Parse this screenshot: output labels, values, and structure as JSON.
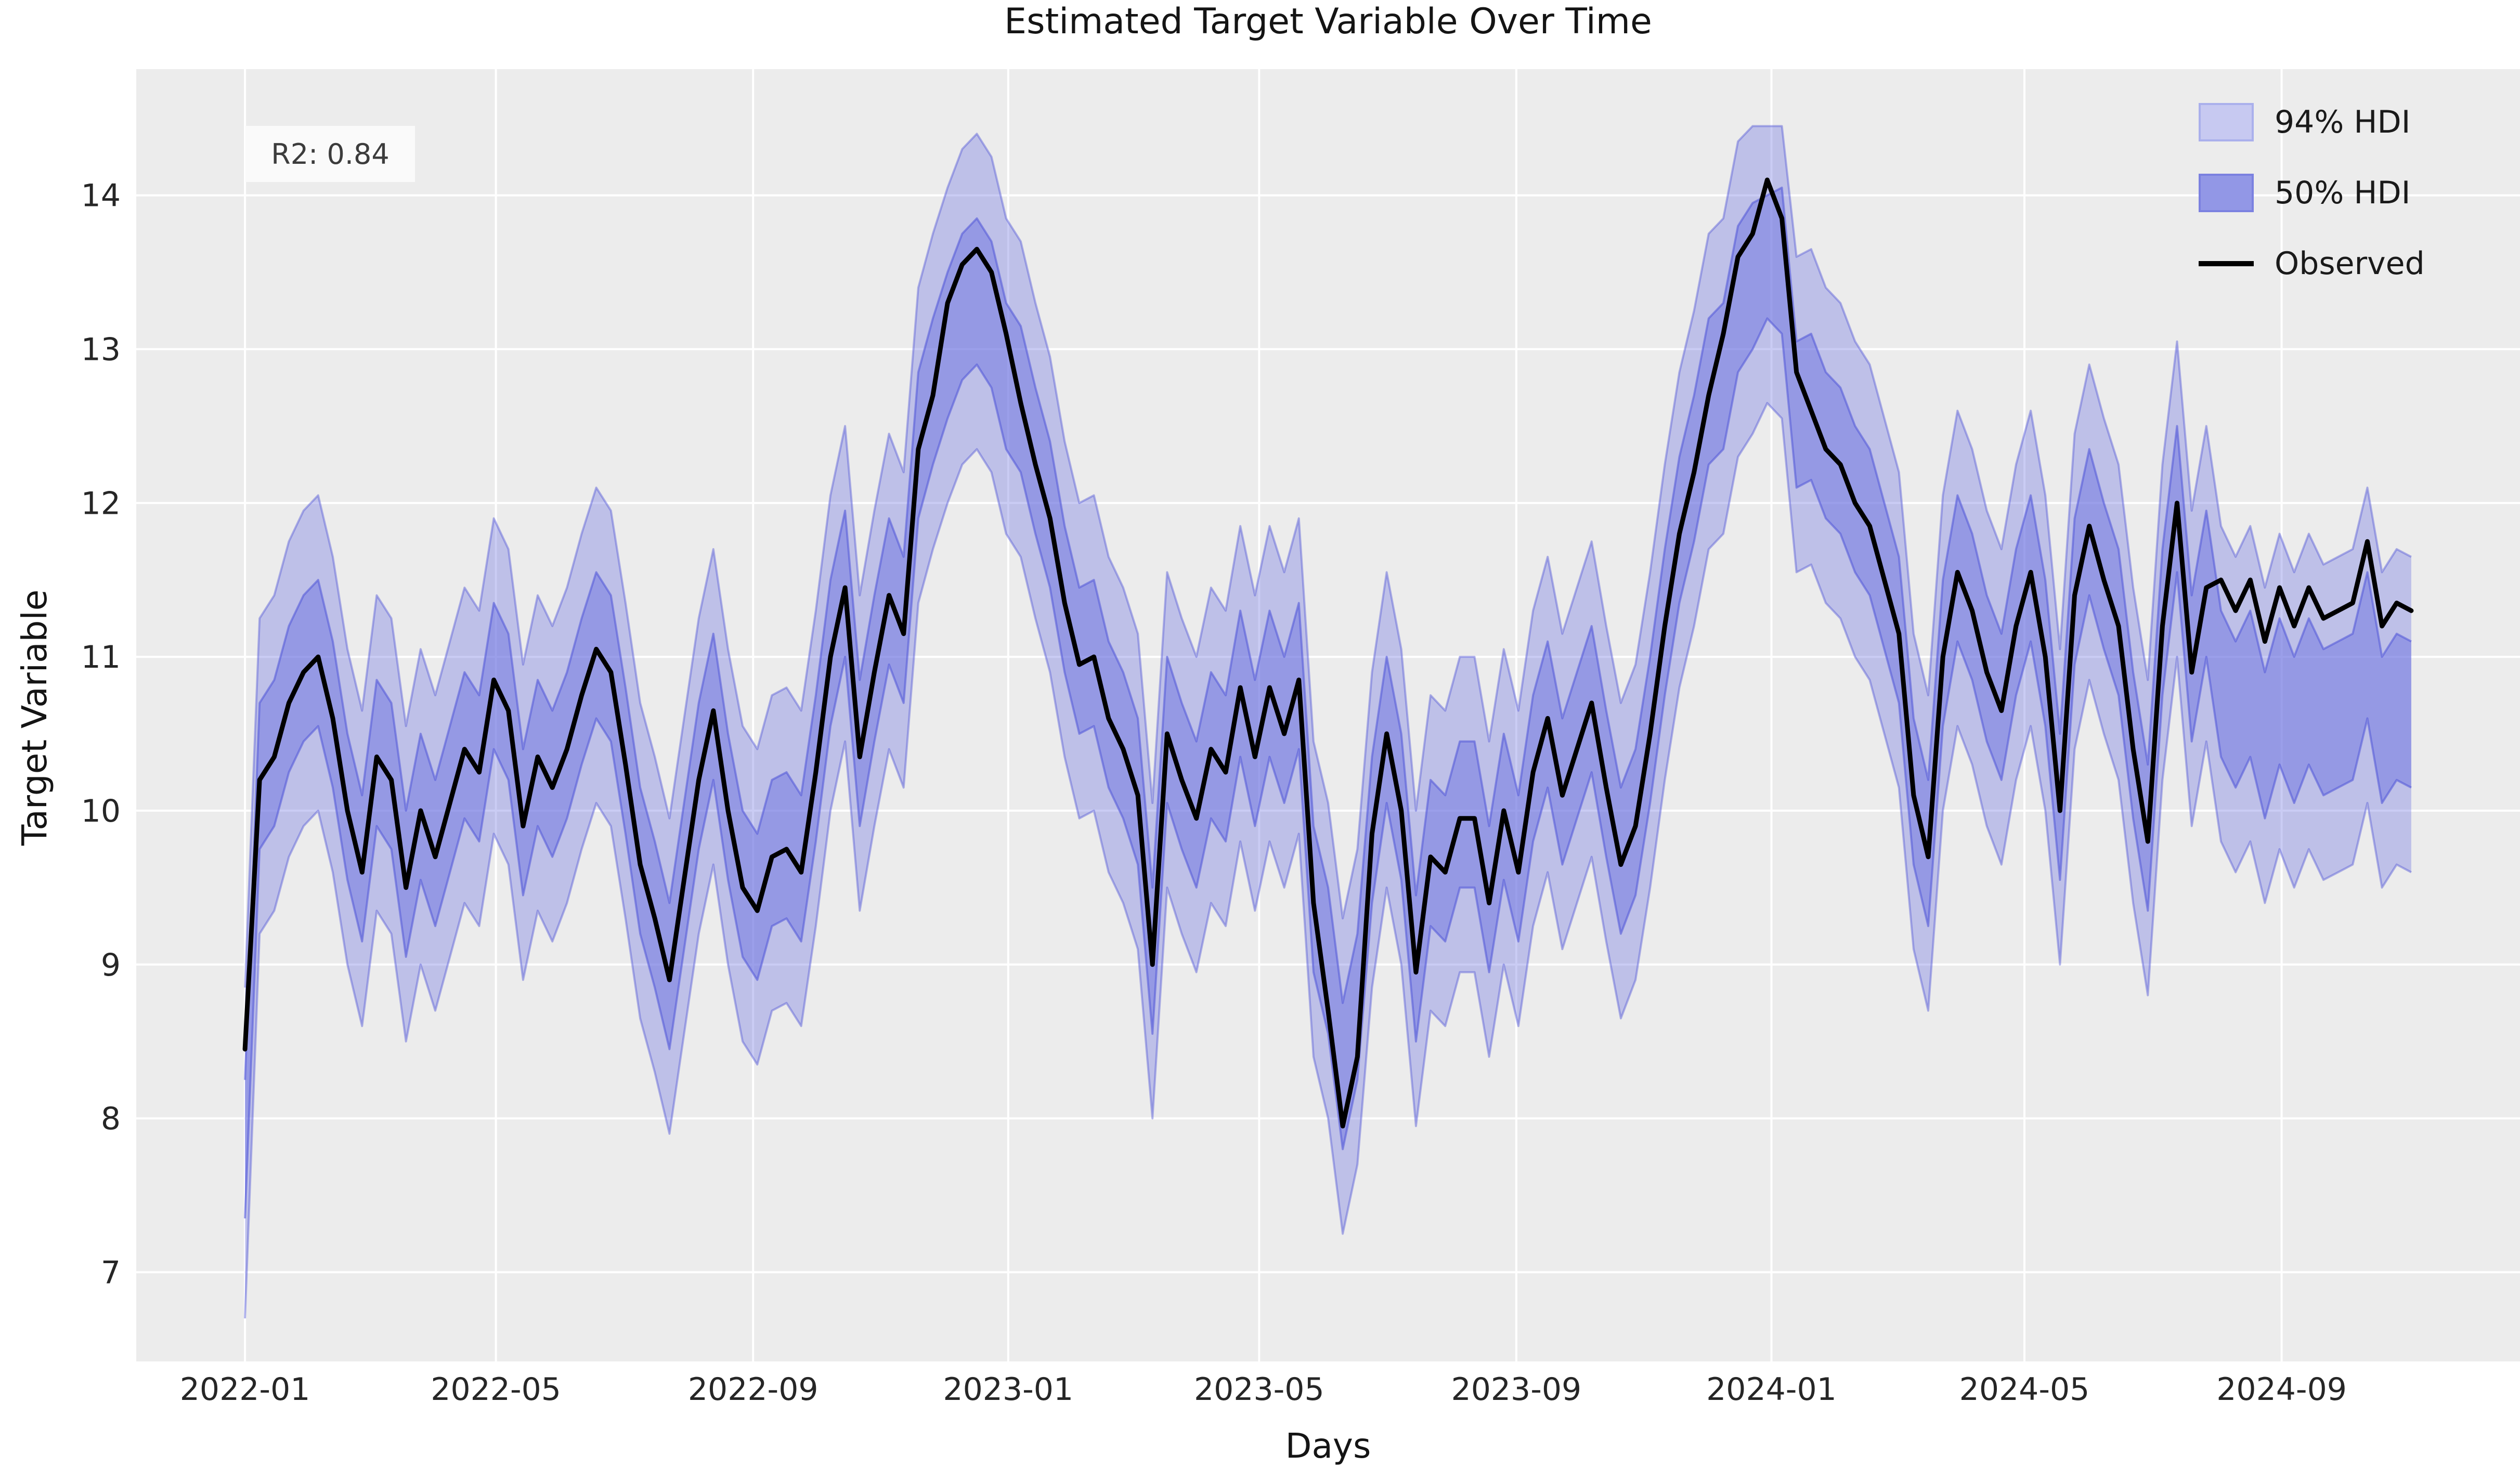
{
  "figure": {
    "title": "Estimated Target Variable Over Time",
    "xlabel": "Days",
    "ylabel": "Target Variable",
    "annotation": "R2: 0.84",
    "legend": [
      {
        "label": "94% HDI",
        "type": "patch",
        "fill": "#c7c9f1",
        "edge": "#aab0ec"
      },
      {
        "label": "50% HDI",
        "type": "patch",
        "fill": "#9297e6",
        "edge": "#7b81e0"
      },
      {
        "label": "Observed",
        "type": "line",
        "fill": "#000000",
        "edge": "#000000"
      }
    ]
  },
  "chart_data": {
    "type": "line",
    "title": "Estimated Target Variable Over Time",
    "xlabel": "Days",
    "ylabel": "Target Variable",
    "r2": 0.84,
    "grid": true,
    "legend_position": "upper right",
    "background": "#ececec",
    "grid_color": "#ffffff",
    "colors": {
      "observed_line": "#000000",
      "band_base": "#6b71e0",
      "band_edge": "#565cd8",
      "hdi94_rendered": "#c7c9f1",
      "hdi50_rendered": "#9297e6"
    },
    "x_unit": "days since 2022-01-01 (weekly sampling of daily series)",
    "x_start_date": "2022-01-01",
    "x_step_days": 7,
    "xlim": [
      -52,
      1088
    ],
    "ylim": [
      6.42,
      14.82
    ],
    "y_ticks": [
      7,
      8,
      9,
      10,
      11,
      12,
      13,
      14
    ],
    "x_tick_days": [
      0,
      120,
      243,
      365,
      485,
      608,
      730,
      851,
      974
    ],
    "x_tick_labels": [
      "2022-01",
      "2022-05",
      "2022-09",
      "2023-01",
      "2023-05",
      "2023-09",
      "2024-01",
      "2024-05",
      "2024-09"
    ],
    "x_days": [
      0,
      7,
      14,
      21,
      28,
      35,
      42,
      49,
      56,
      63,
      70,
      77,
      84,
      91,
      98,
      105,
      112,
      119,
      126,
      133,
      140,
      147,
      154,
      161,
      168,
      175,
      182,
      189,
      196,
      203,
      210,
      217,
      224,
      231,
      238,
      245,
      252,
      259,
      266,
      273,
      280,
      287,
      294,
      301,
      308,
      315,
      322,
      329,
      336,
      343,
      350,
      357,
      364,
      371,
      378,
      385,
      392,
      399,
      406,
      413,
      420,
      427,
      434,
      441,
      448,
      455,
      462,
      469,
      476,
      483,
      490,
      497,
      504,
      511,
      518,
      525,
      532,
      539,
      546,
      553,
      560,
      567,
      574,
      581,
      588,
      595,
      602,
      609,
      616,
      623,
      630,
      637,
      644,
      651,
      658,
      665,
      672,
      679,
      686,
      693,
      700,
      707,
      714,
      721,
      728,
      735,
      742,
      749,
      756,
      763,
      770,
      777,
      784,
      791,
      798,
      805,
      812,
      819,
      826,
      833,
      840,
      847,
      854,
      861,
      868,
      875,
      882,
      889,
      896,
      903,
      910,
      917,
      924,
      931,
      938,
      945,
      952,
      959,
      966,
      973,
      980,
      987,
      994,
      1001,
      1008,
      1015,
      1022,
      1029,
      1036
    ],
    "series": [
      {
        "name": "Observed",
        "values": [
          8.45,
          10.2,
          10.35,
          10.7,
          10.9,
          11.0,
          10.6,
          10.0,
          9.6,
          10.35,
          10.2,
          9.5,
          10.0,
          9.7,
          10.05,
          10.4,
          10.25,
          10.85,
          10.65,
          9.9,
          10.35,
          10.15,
          10.4,
          10.75,
          11.05,
          10.9,
          10.3,
          9.65,
          9.3,
          8.9,
          9.55,
          10.2,
          10.65,
          10.0,
          9.5,
          9.35,
          9.7,
          9.75,
          9.6,
          10.25,
          11.0,
          11.45,
          10.35,
          10.9,
          11.4,
          11.15,
          12.35,
          12.7,
          13.3,
          13.55,
          13.65,
          13.5,
          13.1,
          12.65,
          12.25,
          11.9,
          11.35,
          10.95,
          11.0,
          10.6,
          10.4,
          10.1,
          9.0,
          10.5,
          10.2,
          9.95,
          10.4,
          10.25,
          10.8,
          10.35,
          10.8,
          10.5,
          10.85,
          9.4,
          8.7,
          7.95,
          8.4,
          9.85,
          10.5,
          10.0,
          8.95,
          9.7,
          9.6,
          9.95,
          9.95,
          9.4,
          10.0,
          9.6,
          10.25,
          10.6,
          10.1,
          10.4,
          10.7,
          10.15,
          9.65,
          9.9,
          10.5,
          11.2,
          11.8,
          12.2,
          12.7,
          13.1,
          13.6,
          13.75,
          14.1,
          13.85,
          12.85,
          12.6,
          12.35,
          12.25,
          12.0,
          11.85,
          11.5,
          11.15,
          10.1,
          9.7,
          11.0,
          11.55,
          11.3,
          10.9,
          10.65,
          11.2,
          11.55,
          11.0,
          10.0,
          11.4,
          11.85,
          11.5,
          11.2,
          10.4,
          9.8,
          11.2,
          12.0,
          10.9,
          11.45,
          11.5,
          11.3,
          11.5,
          11.1,
          11.45,
          11.2,
          11.45,
          11.25,
          11.3,
          11.35,
          11.75,
          11.2,
          11.35,
          11.3
        ]
      },
      {
        "name": "hdi50_lower",
        "values": [
          7.35,
          9.75,
          9.9,
          10.25,
          10.45,
          10.55,
          10.15,
          9.55,
          9.15,
          9.9,
          9.75,
          9.05,
          9.55,
          9.25,
          9.6,
          9.95,
          9.8,
          10.4,
          10.2,
          9.45,
          9.9,
          9.7,
          9.95,
          10.3,
          10.6,
          10.45,
          9.85,
          9.2,
          8.85,
          8.45,
          9.1,
          9.75,
          10.2,
          9.55,
          9.05,
          8.9,
          9.25,
          9.3,
          9.15,
          9.8,
          10.55,
          11.0,
          9.9,
          10.45,
          10.95,
          10.7,
          11.9,
          12.25,
          12.55,
          12.8,
          12.9,
          12.75,
          12.35,
          12.2,
          11.8,
          11.45,
          10.9,
          10.5,
          10.55,
          10.15,
          9.95,
          9.65,
          8.55,
          10.05,
          9.75,
          9.5,
          9.95,
          9.8,
          10.35,
          9.9,
          10.35,
          10.05,
          10.4,
          8.95,
          8.55,
          7.8,
          8.25,
          9.4,
          10.05,
          9.55,
          8.5,
          9.25,
          9.15,
          9.5,
          9.5,
          8.95,
          9.55,
          9.15,
          9.8,
          10.15,
          9.65,
          9.95,
          10.25,
          9.7,
          9.2,
          9.45,
          10.05,
          10.75,
          11.35,
          11.75,
          12.25,
          12.35,
          12.85,
          13.0,
          13.2,
          13.1,
          12.1,
          12.15,
          11.9,
          11.8,
          11.55,
          11.4,
          11.05,
          10.7,
          9.65,
          9.25,
          10.55,
          11.1,
          10.85,
          10.45,
          10.2,
          10.75,
          11.1,
          10.55,
          9.55,
          10.95,
          11.4,
          11.05,
          10.75,
          9.95,
          9.35,
          10.75,
          11.55,
          10.45,
          11.0,
          10.35,
          10.15,
          10.35,
          9.95,
          10.3,
          10.05,
          10.3,
          10.1,
          10.15,
          10.2,
          10.6,
          10.05,
          10.2,
          10.15
        ]
      },
      {
        "name": "hdi50_upper",
        "values": [
          8.25,
          10.7,
          10.85,
          11.2,
          11.4,
          11.5,
          11.1,
          10.5,
          10.1,
          10.85,
          10.7,
          10.0,
          10.5,
          10.2,
          10.55,
          10.9,
          10.75,
          11.35,
          11.15,
          10.4,
          10.85,
          10.65,
          10.9,
          11.25,
          11.55,
          11.4,
          10.8,
          10.15,
          9.8,
          9.4,
          10.05,
          10.7,
          11.15,
          10.5,
          10.0,
          9.85,
          10.2,
          10.25,
          10.1,
          10.75,
          11.5,
          11.95,
          10.85,
          11.4,
          11.9,
          11.65,
          12.85,
          13.2,
          13.5,
          13.75,
          13.85,
          13.7,
          13.3,
          13.15,
          12.75,
          12.4,
          11.85,
          11.45,
          11.5,
          11.1,
          10.9,
          10.6,
          9.5,
          11.0,
          10.7,
          10.45,
          10.9,
          10.75,
          11.3,
          10.85,
          11.3,
          11.0,
          11.35,
          9.9,
          9.5,
          8.75,
          9.2,
          10.35,
          11.0,
          10.5,
          9.45,
          10.2,
          10.1,
          10.45,
          10.45,
          9.9,
          10.5,
          10.1,
          10.75,
          11.1,
          10.6,
          10.9,
          11.2,
          10.65,
          10.15,
          10.4,
          11.0,
          11.7,
          12.3,
          12.7,
          13.2,
          13.3,
          13.8,
          13.95,
          14.0,
          14.05,
          13.05,
          13.1,
          12.85,
          12.75,
          12.5,
          12.35,
          12.0,
          11.65,
          10.6,
          10.2,
          11.5,
          12.05,
          11.8,
          11.4,
          11.15,
          11.7,
          12.05,
          11.5,
          10.5,
          11.9,
          12.35,
          12.0,
          11.7,
          10.9,
          10.3,
          11.7,
          12.5,
          11.4,
          11.95,
          11.3,
          11.1,
          11.3,
          10.9,
          11.25,
          11.0,
          11.25,
          11.05,
          11.1,
          11.15,
          11.55,
          11.0,
          11.15,
          11.1
        ]
      },
      {
        "name": "hdi94_lower",
        "values": [
          6.7,
          9.2,
          9.35,
          9.7,
          9.9,
          10.0,
          9.6,
          9.0,
          8.6,
          9.35,
          9.2,
          8.5,
          9.0,
          8.7,
          9.05,
          9.4,
          9.25,
          9.85,
          9.65,
          8.9,
          9.35,
          9.15,
          9.4,
          9.75,
          10.05,
          9.9,
          9.3,
          8.65,
          8.3,
          7.9,
          8.55,
          9.2,
          9.65,
          9.0,
          8.5,
          8.35,
          8.7,
          8.75,
          8.6,
          9.25,
          10.0,
          10.45,
          9.35,
          9.9,
          10.4,
          10.15,
          11.35,
          11.7,
          12.0,
          12.25,
          12.35,
          12.2,
          11.8,
          11.65,
          11.25,
          10.9,
          10.35,
          9.95,
          10.0,
          9.6,
          9.4,
          9.1,
          8.0,
          9.5,
          9.2,
          8.95,
          9.4,
          9.25,
          9.8,
          9.35,
          9.8,
          9.5,
          9.85,
          8.4,
          8.0,
          7.25,
          7.7,
          8.85,
          9.5,
          9.0,
          7.95,
          8.7,
          8.6,
          8.95,
          8.95,
          8.4,
          9.0,
          8.6,
          9.25,
          9.6,
          9.1,
          9.4,
          9.7,
          9.15,
          8.65,
          8.9,
          9.5,
          10.2,
          10.8,
          11.2,
          11.7,
          11.8,
          12.3,
          12.45,
          12.65,
          12.55,
          11.55,
          11.6,
          11.35,
          11.25,
          11.0,
          10.85,
          10.5,
          10.15,
          9.1,
          8.7,
          10.0,
          10.55,
          10.3,
          9.9,
          9.65,
          10.2,
          10.55,
          10.0,
          9.0,
          10.4,
          10.85,
          10.5,
          10.2,
          9.4,
          8.8,
          10.2,
          11.0,
          9.9,
          10.45,
          9.8,
          9.6,
          9.8,
          9.4,
          9.75,
          9.5,
          9.75,
          9.55,
          9.6,
          9.65,
          10.05,
          9.5,
          9.65,
          9.6
        ]
      },
      {
        "name": "hdi94_upper",
        "values": [
          8.85,
          11.25,
          11.4,
          11.75,
          11.95,
          12.05,
          11.65,
          11.05,
          10.65,
          11.4,
          11.25,
          10.55,
          11.05,
          10.75,
          11.1,
          11.45,
          11.3,
          11.9,
          11.7,
          10.95,
          11.4,
          11.2,
          11.45,
          11.8,
          12.1,
          11.95,
          11.35,
          10.7,
          10.35,
          9.95,
          10.6,
          11.25,
          11.7,
          11.05,
          10.55,
          10.4,
          10.75,
          10.8,
          10.65,
          11.3,
          12.05,
          12.5,
          11.4,
          11.95,
          12.45,
          12.2,
          13.4,
          13.75,
          14.05,
          14.3,
          14.4,
          14.25,
          13.85,
          13.7,
          13.3,
          12.95,
          12.4,
          12.0,
          12.05,
          11.65,
          11.45,
          11.15,
          10.05,
          11.55,
          11.25,
          11.0,
          11.45,
          11.3,
          11.85,
          11.4,
          11.85,
          11.55,
          11.9,
          10.45,
          10.05,
          9.3,
          9.75,
          10.9,
          11.55,
          11.05,
          10.0,
          10.75,
          10.65,
          11.0,
          11.0,
          10.45,
          11.05,
          10.65,
          11.3,
          11.65,
          11.15,
          11.45,
          11.75,
          11.2,
          10.7,
          10.95,
          11.55,
          12.25,
          12.85,
          13.25,
          13.75,
          13.85,
          14.35,
          14.45,
          14.45,
          14.45,
          13.6,
          13.65,
          13.4,
          13.3,
          13.05,
          12.9,
          12.55,
          12.2,
          11.15,
          10.75,
          12.05,
          12.6,
          12.35,
          11.95,
          11.7,
          12.25,
          12.6,
          12.05,
          11.05,
          12.45,
          12.9,
          12.55,
          12.25,
          11.45,
          10.85,
          12.25,
          13.05,
          11.95,
          12.5,
          11.85,
          11.65,
          11.85,
          11.45,
          11.8,
          11.55,
          11.8,
          11.6,
          11.65,
          11.7,
          12.1,
          11.55,
          11.7,
          11.65
        ]
      }
    ]
  }
}
